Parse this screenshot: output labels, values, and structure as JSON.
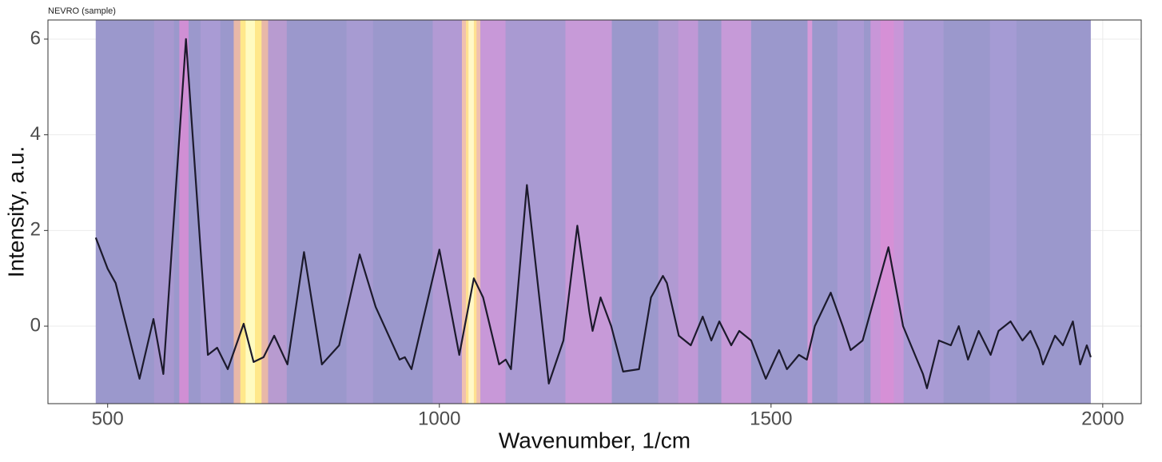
{
  "chart_data": {
    "type": "line",
    "title": "NEVRO (sample)",
    "x_label": "Wavenumber, 1/cm",
    "y_label": "Intensity, a.u.",
    "xlim": [
      410,
      2058
    ],
    "ylim": [
      -1.62,
      6.4
    ],
    "xticks": [
      500,
      1000,
      1500,
      2000
    ],
    "yticks": [
      0,
      2,
      4,
      6
    ],
    "grid": true,
    "bands": [
      {
        "x": [
          482,
          1982
        ],
        "color": "#9b98cc"
      },
      {
        "x": [
          570,
          600
        ],
        "color": "#a898d0"
      },
      {
        "x": [
          608,
          622
        ],
        "color": "#d08fd4"
      },
      {
        "x": [
          640,
          670
        ],
        "color": "#a99bd4"
      },
      {
        "x": [
          690,
          742
        ],
        "color": "#e8b8a8"
      },
      {
        "x": [
          700,
          732
        ],
        "color": "#ffe88a"
      },
      {
        "x": [
          708,
          722
        ],
        "color": "#fffbc0"
      },
      {
        "x": [
          742,
          770
        ],
        "color": "#b89bd0"
      },
      {
        "x": [
          860,
          900
        ],
        "color": "#a79bd2"
      },
      {
        "x": [
          990,
          1034
        ],
        "color": "#b29ad4"
      },
      {
        "x": [
          1034,
          1062
        ],
        "color": "#f0c0b0"
      },
      {
        "x": [
          1040,
          1056
        ],
        "color": "#ffe090"
      },
      {
        "x": [
          1044,
          1052
        ],
        "color": "#fff8c8"
      },
      {
        "x": [
          1062,
          1100
        ],
        "color": "#c898d8"
      },
      {
        "x": [
          1100,
          1190
        ],
        "color": "#a99ad2"
      },
      {
        "x": [
          1190,
          1260
        ],
        "color": "#c79ad8"
      },
      {
        "x": [
          1330,
          1360
        ],
        "color": "#b09ad2"
      },
      {
        "x": [
          1360,
          1390
        ],
        "color": "#c098d6"
      },
      {
        "x": [
          1425,
          1470
        ],
        "color": "#c69ad8"
      },
      {
        "x": [
          1555,
          1562
        ],
        "color": "#d69ad8"
      },
      {
        "x": [
          1600,
          1640
        ],
        "color": "#ab9ad4"
      },
      {
        "x": [
          1650,
          1700
        ],
        "color": "#c896d8"
      },
      {
        "x": [
          1665,
          1685
        ],
        "color": "#d690d6"
      },
      {
        "x": [
          1700,
          1760
        ],
        "color": "#a99bd4"
      },
      {
        "x": [
          1830,
          1870
        ],
        "color": "#a59bd4"
      }
    ],
    "series": [
      {
        "name": "NEVRO (sample)",
        "color": "#1c1a2c",
        "x": [
          482,
          500,
          512,
          548,
          569,
          584,
          618,
          651,
          665,
          681,
          705,
          720,
          735,
          751,
          771,
          796,
          823,
          849,
          880,
          904,
          940,
          948,
          958,
          1000,
          1030,
          1052,
          1066,
          1090,
          1100,
          1108,
          1132,
          1165,
          1187,
          1208,
          1226,
          1231,
          1243,
          1259,
          1277,
          1301,
          1319,
          1337,
          1343,
          1361,
          1379,
          1397,
          1410,
          1422,
          1440,
          1452,
          1470,
          1492,
          1512,
          1524,
          1542,
          1554,
          1566,
          1590,
          1608,
          1620,
          1638,
          1677,
          1699,
          1717,
          1729,
          1735,
          1753,
          1771,
          1783,
          1797,
          1813,
          1831,
          1843,
          1861,
          1879,
          1891,
          1904,
          1910,
          1928,
          1940,
          1955,
          1966,
          1976,
          1982
        ],
        "values": [
          1.85,
          1.2,
          0.9,
          -1.1,
          0.15,
          -1.0,
          6.0,
          -0.6,
          -0.45,
          -0.9,
          0.05,
          -0.75,
          -0.65,
          -0.2,
          -0.8,
          1.55,
          -0.8,
          -0.4,
          1.5,
          0.4,
          -0.7,
          -0.65,
          -0.9,
          1.6,
          -0.6,
          1.0,
          0.6,
          -0.8,
          -0.7,
          -0.9,
          2.95,
          -1.2,
          -0.3,
          2.1,
          0.3,
          -0.1,
          0.6,
          0.0,
          -0.95,
          -0.9,
          0.6,
          1.05,
          0.9,
          -0.2,
          -0.4,
          0.2,
          -0.3,
          0.1,
          -0.4,
          -0.1,
          -0.3,
          -1.1,
          -0.5,
          -0.9,
          -0.6,
          -0.7,
          0.0,
          0.7,
          0.0,
          -0.5,
          -0.3,
          1.65,
          0.0,
          -0.6,
          -1.0,
          -1.3,
          -0.3,
          -0.4,
          0.0,
          -0.7,
          -0.1,
          -0.6,
          -0.1,
          0.1,
          -0.3,
          -0.1,
          -0.5,
          -0.8,
          -0.2,
          -0.4,
          0.1,
          -0.8,
          -0.4,
          -0.65
        ]
      }
    ]
  }
}
